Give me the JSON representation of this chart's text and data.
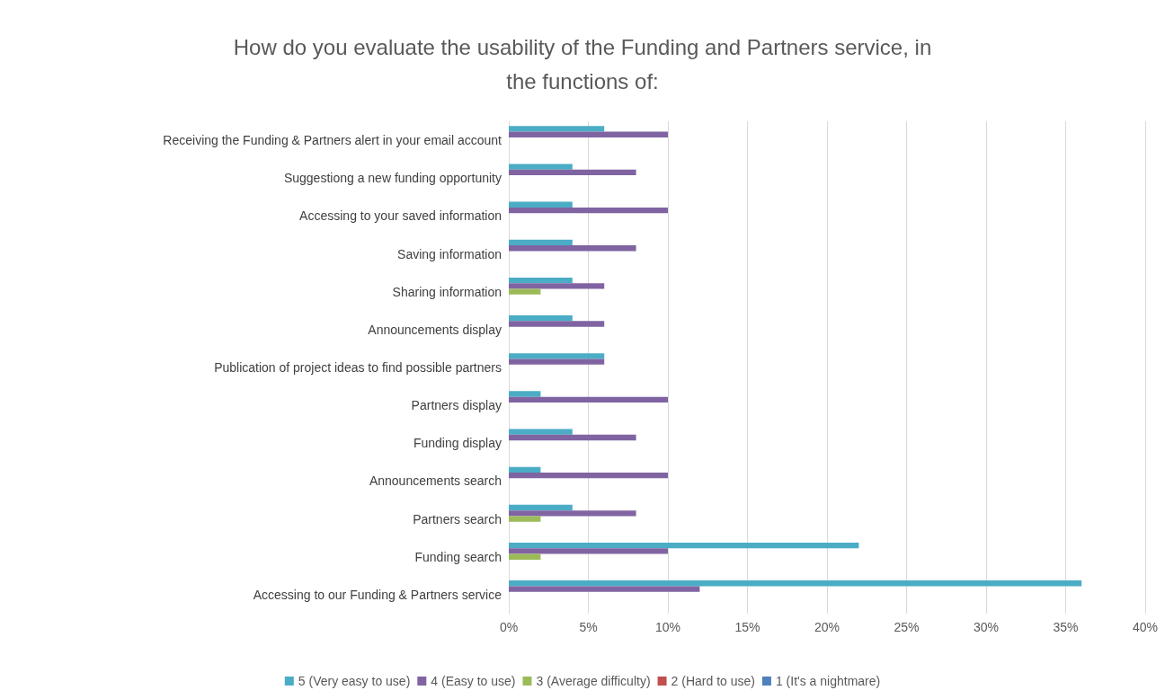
{
  "chart_data": {
    "type": "bar",
    "orientation": "horizontal",
    "title": "How do you evaluate the usability of the Funding and Partners service, in\nthe functions of:",
    "categories": [
      "Receiving the Funding & Partners alert in your email account",
      "Suggestiong a new funding opportunity",
      "Accessing to your saved information",
      "Saving information",
      "Sharing information",
      "Announcements display",
      "Publication of project ideas to find possible partners",
      "Partners display",
      "Funding display",
      "Announcements search",
      "Partners search",
      "Funding search",
      "Accessing to our Funding & Partners service"
    ],
    "series": [
      {
        "name": "5 (Very easy to use)",
        "color": "#4bacc6",
        "values": [
          6,
          4,
          4,
          4,
          4,
          4,
          6,
          2,
          4,
          2,
          4,
          22,
          36
        ]
      },
      {
        "name": "4 (Easy to use)",
        "color": "#8064a2",
        "values": [
          10,
          8,
          10,
          8,
          6,
          6,
          6,
          10,
          8,
          10,
          8,
          10,
          12
        ]
      },
      {
        "name": "3 (Average difficulty)",
        "color": "#9bbb59",
        "values": [
          0,
          0,
          0,
          0,
          2,
          0,
          0,
          0,
          0,
          0,
          2,
          2,
          0
        ]
      },
      {
        "name": "2 (Hard to use)",
        "color": "#c0504d",
        "values": [
          0,
          0,
          0,
          0,
          0,
          0,
          0,
          0,
          0,
          0,
          0,
          0,
          0
        ]
      },
      {
        "name": "1 (It's a nightmare)",
        "color": "#4f81bd",
        "values": [
          0,
          0,
          0,
          0,
          0,
          0,
          0,
          0,
          0,
          0,
          0,
          0,
          0
        ]
      }
    ],
    "xlim": [
      0,
      40
    ],
    "xticks": [
      {
        "value": 0,
        "label": "0%"
      },
      {
        "value": 5,
        "label": "5%"
      },
      {
        "value": 10,
        "label": "10%"
      },
      {
        "value": 15,
        "label": "15%"
      },
      {
        "value": 20,
        "label": "20%"
      },
      {
        "value": 25,
        "label": "25%"
      },
      {
        "value": 30,
        "label": "30%"
      },
      {
        "value": 35,
        "label": "35%"
      },
      {
        "value": 40,
        "label": "40%"
      }
    ],
    "grid": "x",
    "legend": "bottom"
  }
}
